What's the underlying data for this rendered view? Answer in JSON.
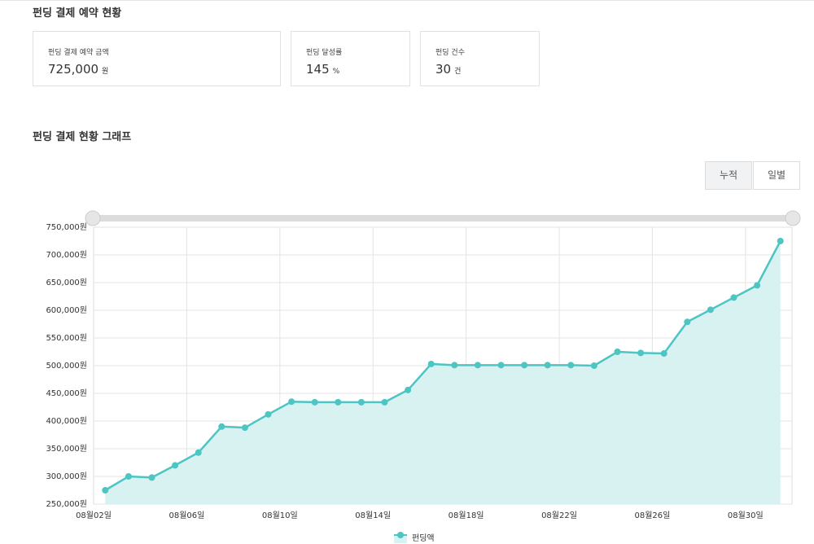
{
  "header": {
    "title": "펀딩 결제 예약 현황"
  },
  "stats": [
    {
      "label": "펀딩 결제 예약 금액",
      "value": "725,000",
      "unit": "원"
    },
    {
      "label": "펀딩 달성률",
      "value": "145",
      "unit": "%"
    },
    {
      "label": "펀딩 건수",
      "value": "30",
      "unit": "건"
    }
  ],
  "graph_title": "펀딩 결제 현황 그래프",
  "toggle": [
    "누적",
    "일별"
  ],
  "chart_data": {
    "type": "area",
    "categories": [
      "08월02일",
      null,
      null,
      null,
      "08월06일",
      null,
      null,
      null,
      "08월10일",
      null,
      null,
      null,
      "08월14일",
      null,
      null,
      null,
      "08월18일",
      null,
      null,
      null,
      "08월22일",
      null,
      null,
      null,
      "08월26일",
      null,
      null,
      null,
      "08월30일",
      null
    ],
    "series": [
      {
        "name": "펀딩액",
        "color": "#4cc5c3",
        "fill": "#d7f2f1",
        "values": [
          275000,
          300000,
          298000,
          320000,
          343000,
          390000,
          388000,
          412000,
          435000,
          434000,
          434000,
          434000,
          434000,
          456000,
          503000,
          501000,
          501000,
          501000,
          501000,
          501000,
          501000,
          500000,
          525000,
          523000,
          522000,
          579000,
          601000,
          623000,
          645000,
          725000
        ]
      }
    ],
    "ylim": [
      250000,
      750000
    ],
    "yticks": [
      {
        "value": 250000,
        "label": "250,000원"
      },
      {
        "value": 300000,
        "label": "300,000원"
      },
      {
        "value": 350000,
        "label": "350,000원"
      },
      {
        "value": 400000,
        "label": "400,000원"
      },
      {
        "value": 450000,
        "label": "450,000원"
      },
      {
        "value": 500000,
        "label": "500,000원"
      },
      {
        "value": 550000,
        "label": "550,000원"
      },
      {
        "value": 600000,
        "label": "600,000원"
      },
      {
        "value": 650000,
        "label": "650,000원"
      },
      {
        "value": 700000,
        "label": "700,000원"
      },
      {
        "value": 750000,
        "label": "750,000원"
      }
    ],
    "grid": true
  }
}
